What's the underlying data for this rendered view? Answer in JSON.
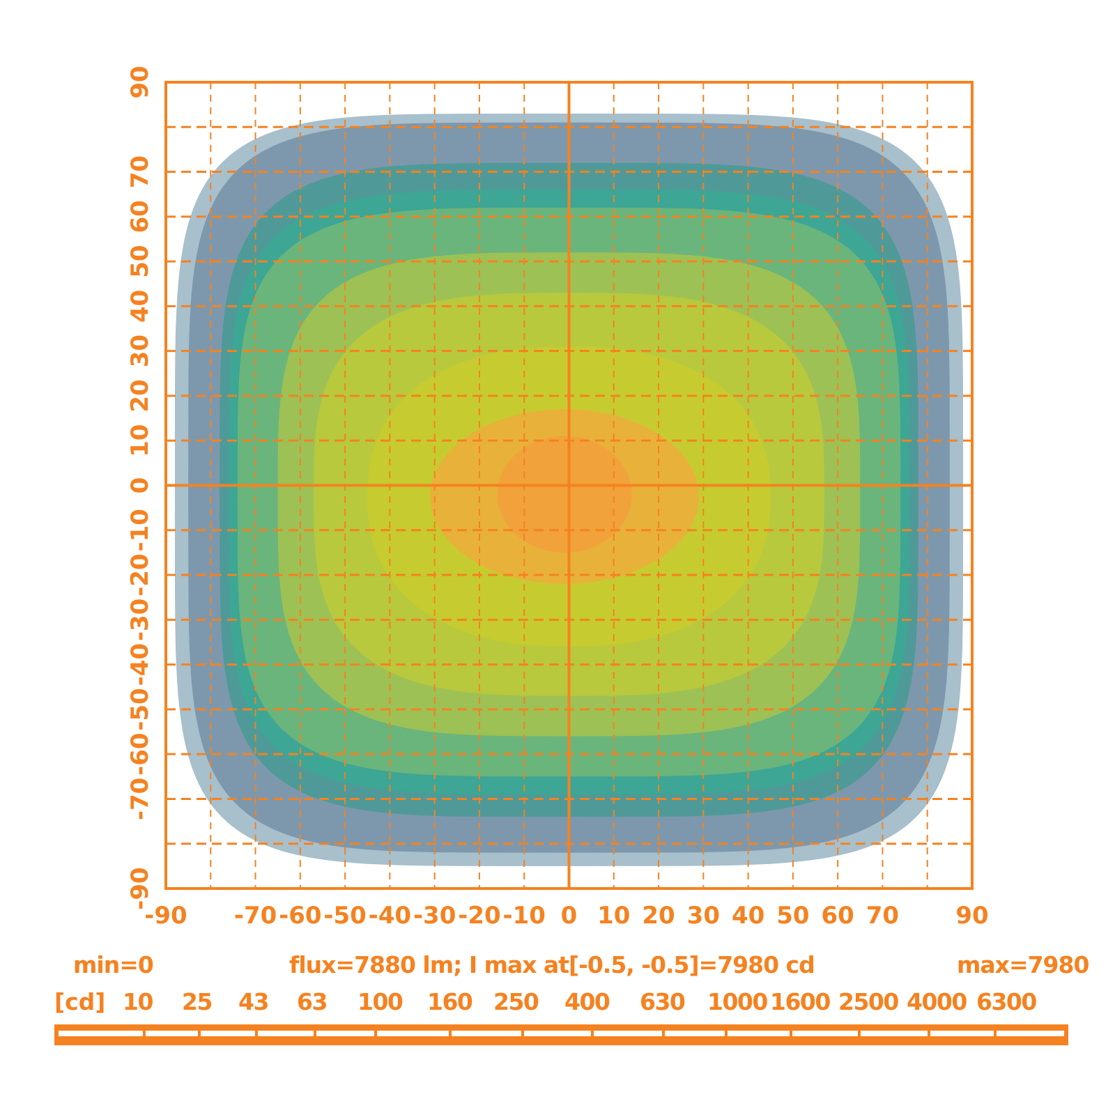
{
  "chart_data": {
    "type": "heatmap",
    "subtype": "isocandela-contour",
    "x_range": [
      -90,
      90
    ],
    "y_range": [
      -90,
      90
    ],
    "x_ticks": [
      -90,
      -70,
      -60,
      -50,
      -40,
      -30,
      -20,
      -10,
      0,
      10,
      20,
      30,
      40,
      50,
      60,
      70,
      90
    ],
    "y_ticks": [
      -90,
      -70,
      -60,
      -50,
      -40,
      -30,
      -20,
      -10,
      0,
      10,
      20,
      30,
      40,
      50,
      60,
      70,
      90
    ],
    "grid": true,
    "contours": [
      {
        "level": 10,
        "half_width": 88,
        "y_top": 83,
        "y_bottom": -85,
        "center_x": 0,
        "color": "#a8bfcc"
      },
      {
        "level": 25,
        "half_width": 85,
        "y_top": 81,
        "y_bottom": -82,
        "center_x": 0,
        "color": "#7d98ad"
      },
      {
        "level": 63,
        "half_width": 78,
        "y_top": 72,
        "y_bottom": -74,
        "center_x": 0,
        "color": "#4f9a98"
      },
      {
        "level": 160,
        "half_width": 76,
        "y_top": 66,
        "y_bottom": -69,
        "center_x": 0,
        "color": "#3da695"
      },
      {
        "level": 400,
        "half_width": 74,
        "y_top": 62,
        "y_bottom": -65,
        "center_x": 0,
        "color": "#6ab57c"
      },
      {
        "level": 1000,
        "half_width": 65,
        "y_top": 52,
        "y_bottom": -56,
        "center_x": 0,
        "color": "#9dc155"
      },
      {
        "level": 1600,
        "half_width": 57,
        "y_top": 43,
        "y_bottom": -47,
        "center_x": 0,
        "color": "#b8c93d"
      },
      {
        "level": 2500,
        "half_width": 45,
        "y_top": 31,
        "y_bottom": -36,
        "center_x": 0,
        "color": "#c6cc2f"
      },
      {
        "level": 4000,
        "half_width": 30,
        "y_top": 17,
        "y_bottom": -22,
        "center_x": -1,
        "color": "#e8b13a"
      },
      {
        "level": 6300,
        "half_width": 15,
        "y_top": 11,
        "y_bottom": -15,
        "center_x": -1,
        "color": "#f1a23a"
      }
    ]
  },
  "legend": {
    "min_label": "min=0",
    "info_label": "flux=7880 lm; I max  at[-0.5, -0.5]=7980 cd",
    "max_label": "max=7980",
    "unit_label": "[cd]",
    "scale_values": [
      "10",
      "25",
      "43",
      "63",
      "100",
      "160",
      "250",
      "400",
      "630",
      "1000",
      "1600",
      "2500",
      "4000",
      "6300"
    ]
  },
  "colors": {
    "axis": "#f58220",
    "background": "#ffffff"
  }
}
